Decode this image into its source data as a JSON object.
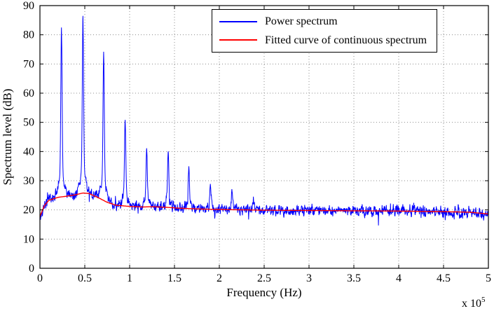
{
  "figure": {
    "background": "#ffffff",
    "x_scale_label": "x 10",
    "x_scale_exp": "5"
  },
  "legend": {
    "items": [
      {
        "label": "Power spectrum",
        "color": "#0000ff"
      },
      {
        "label": "Fitted curve of continuous spectrum",
        "color": "#ff0000"
      }
    ]
  },
  "chart_data": {
    "type": "line",
    "title": "",
    "xlabel": "Frequency (Hz)",
    "ylabel": "Spectrum level (dB)",
    "xlim": [
      0,
      500000
    ],
    "ylim": [
      0,
      90
    ],
    "xticks": [
      0,
      0.5,
      1,
      1.5,
      2,
      2.5,
      3,
      3.5,
      4,
      4.5,
      5
    ],
    "xtick_unit": 100000,
    "x_axis_exponent": "x 10^5",
    "yticks": [
      0,
      10,
      20,
      30,
      40,
      50,
      60,
      70,
      80,
      90
    ],
    "grid": true,
    "grid_style": "dotted",
    "legend_position": "top-center-inside",
    "series": [
      {
        "name": "Power spectrum",
        "color": "#0000ff",
        "style": "noisy-line",
        "noise_amplitude_db": 3.3,
        "noise_floor_db": 20,
        "peaks": [
          {
            "x": 24000,
            "y": 75
          },
          {
            "x": 48000,
            "y": 78
          },
          {
            "x": 71000,
            "y": 67
          },
          {
            "x": 95000,
            "y": 47.5
          },
          {
            "x": 119000,
            "y": 38.5
          },
          {
            "x": 143000,
            "y": 37.5
          },
          {
            "x": 166000,
            "y": 33
          },
          {
            "x": 190000,
            "y": 27.5
          },
          {
            "x": 214000,
            "y": 25.5
          },
          {
            "x": 238000,
            "y": 23.5
          }
        ]
      },
      {
        "name": "Fitted curve of continuous spectrum",
        "color": "#ff0000",
        "style": "smooth-line",
        "points": [
          [
            0,
            17.8
          ],
          [
            5000,
            21.5
          ],
          [
            10000,
            23.3
          ],
          [
            20000,
            24.3
          ],
          [
            30000,
            24.7
          ],
          [
            40000,
            25.2
          ],
          [
            48000,
            25.8
          ],
          [
            55000,
            25.6
          ],
          [
            65000,
            24.2
          ],
          [
            75000,
            22.6
          ],
          [
            85000,
            21.6
          ],
          [
            100000,
            21.2
          ],
          [
            115000,
            21.0
          ],
          [
            125000,
            21.1
          ],
          [
            140000,
            20.9
          ],
          [
            155000,
            20.6
          ],
          [
            170000,
            20.4
          ],
          [
            190000,
            20.2
          ],
          [
            210000,
            20.1
          ],
          [
            250000,
            19.9
          ],
          [
            300000,
            19.8
          ],
          [
            350000,
            19.7
          ],
          [
            400000,
            19.6
          ],
          [
            450000,
            19.4
          ],
          [
            480000,
            19.2
          ],
          [
            500000,
            18.6
          ]
        ]
      }
    ]
  }
}
